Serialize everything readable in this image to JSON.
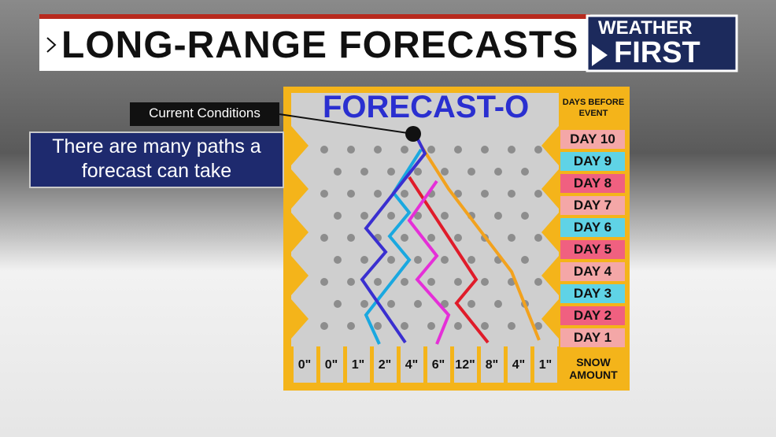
{
  "header": {
    "title": "LONG-RANGE FORECASTS",
    "logo": [
      "WEATHER",
      "FIRST"
    ]
  },
  "board": {
    "title": "FORECAST-O",
    "days_heading": [
      "DAYS BEFORE",
      "EVENT"
    ],
    "days": [
      "DAY 10",
      "DAY 9",
      "DAY 8",
      "DAY 7",
      "DAY 6",
      "DAY 5",
      "DAY 4",
      "DAY 3",
      "DAY 2",
      "DAY 1"
    ],
    "snow_amounts": [
      "0\"",
      "0\"",
      "1\"",
      "2\"",
      "4\"",
      "6\"",
      "12\"",
      "8\"",
      "4\"",
      "1\""
    ],
    "snow_heading": [
      "SNOW",
      "AMOUNT"
    ]
  },
  "labels": {
    "current": "Current Conditions",
    "callout": [
      "There are many paths a",
      "forecast can take"
    ]
  }
}
